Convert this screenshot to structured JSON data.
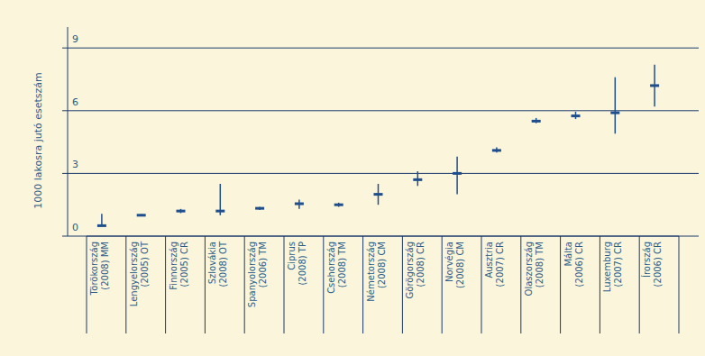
{
  "chart_data": {
    "type": "range",
    "y_label": "1000 lakosra jutó esetszám",
    "categories": [
      "Törökország\n(2008) MM",
      "Lengyelország\n(2005) OT",
      "Finnország\n(2005) CR",
      "Szlovákia\n(2008) OT",
      "Spanyolország\n(2006) TM",
      "Ciprus\n(2008) TP",
      "Csehország\n(2008) TM",
      "Németország\n(2008) CM",
      "Görögország\n(2008) CR",
      "Norvégia\n(2008) CM",
      "Ausztria\n(2007) CR",
      "Olaszország\n(2008) TM",
      "Málta\n(2006) CR",
      "Luxemburg\n(2007) CR",
      "Írország\n(2006) CR"
    ],
    "values": [
      0.5,
      1.0,
      1.2,
      1.2,
      1.33,
      1.55,
      1.5,
      2.0,
      2.7,
      3.0,
      4.1,
      5.5,
      5.75,
      5.9,
      7.2
    ],
    "low": [
      0.5,
      0.95,
      1.1,
      1.0,
      1.25,
      1.3,
      1.4,
      1.5,
      2.4,
      2.0,
      4.0,
      5.4,
      5.6,
      4.9,
      6.2
    ],
    "high": [
      1.07,
      1.05,
      1.3,
      2.5,
      1.4,
      1.75,
      1.6,
      2.5,
      3.1,
      3.8,
      4.25,
      5.65,
      5.95,
      7.6,
      8.2
    ],
    "color": "#1f4e8c",
    "ylim": [
      0,
      10
    ],
    "yticks": [
      0,
      3,
      6,
      9
    ],
    "grid": true
  }
}
